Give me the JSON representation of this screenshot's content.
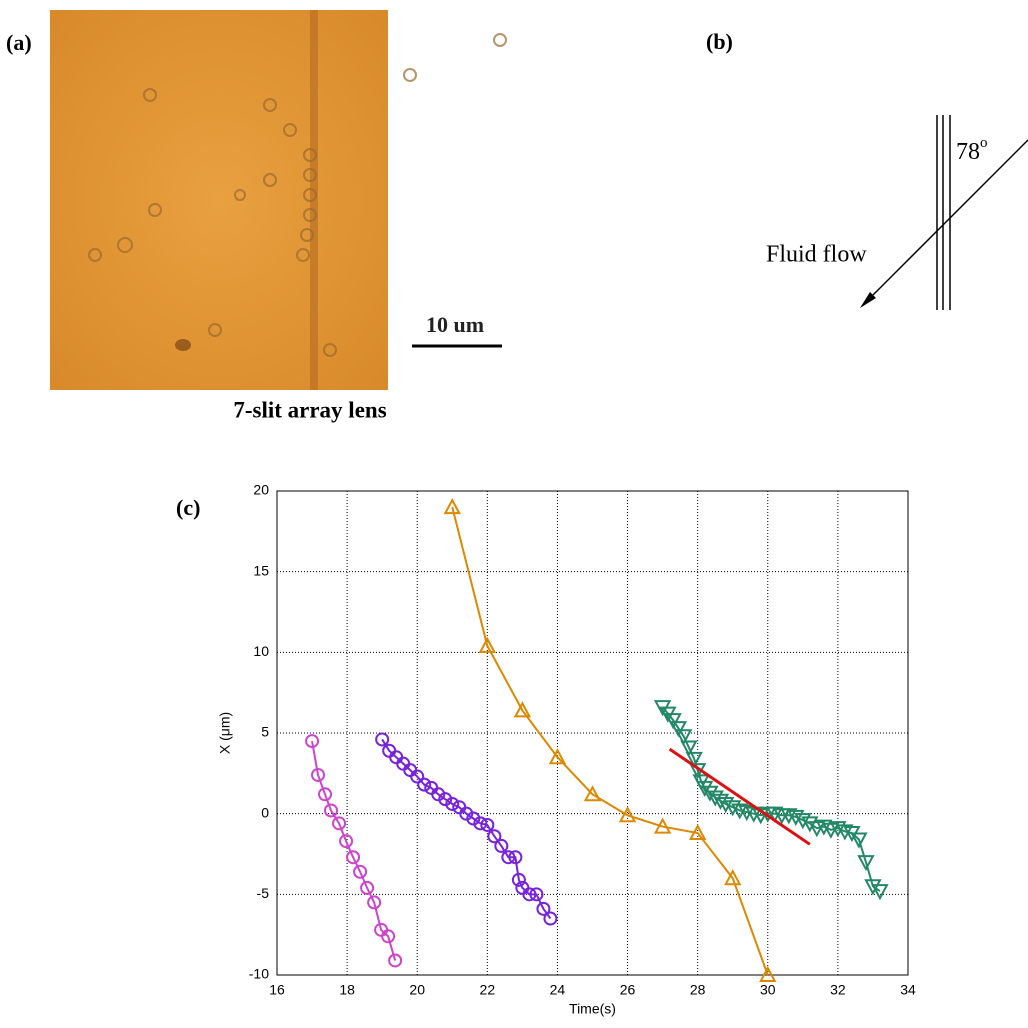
{
  "panel_labels": [
    "(a)",
    "(b)",
    "(c)"
  ],
  "image": {
    "scale_bar": "10 um",
    "caption": "7-slit array lens"
  },
  "diagram": {
    "angle": "78",
    "angle_unit": "o",
    "flow_label": "Fluid flow"
  },
  "chart_data": {
    "type": "line",
    "xlabel": "Time(s)",
    "ylabel": "X (μm)",
    "xlim": [
      16,
      34
    ],
    "xticks": [
      16,
      18,
      20,
      22,
      24,
      26,
      28,
      30,
      32,
      34
    ],
    "ylim": [
      -10,
      20
    ],
    "yticks": [
      -10,
      -5,
      0,
      5,
      10,
      15,
      20
    ],
    "grid": true,
    "series": [
      {
        "color": "#cc44cc",
        "marker": "circle",
        "x": [
          17.0,
          17.17,
          17.37,
          17.54,
          17.77,
          17.97,
          18.17,
          18.37,
          18.57,
          18.77,
          18.97,
          19.17,
          19.37
        ],
        "values": [
          4.5,
          2.4,
          1.2,
          0.2,
          -0.6,
          -1.7,
          -2.7,
          -3.6,
          -4.6,
          -5.5,
          -7.2,
          -7.6,
          -9.1
        ]
      },
      {
        "color": "#7722dd",
        "marker": "circle",
        "x": [
          19.0,
          19.2,
          19.4,
          19.6,
          19.8,
          20.0,
          20.2,
          20.4,
          20.6,
          20.8,
          21.0,
          21.2,
          21.4,
          21.6,
          21.8,
          22.0,
          22.2,
          22.4,
          22.6,
          22.8,
          22.9,
          23.0,
          23.2,
          23.4,
          23.6,
          23.8
        ],
        "values": [
          4.6,
          3.9,
          3.5,
          3.1,
          2.7,
          2.3,
          1.8,
          1.6,
          1.2,
          0.9,
          0.6,
          0.4,
          0.0,
          -0.3,
          -0.6,
          -0.7,
          -1.4,
          -2.0,
          -2.7,
          -2.7,
          -4.1,
          -4.6,
          -5.0,
          -5.0,
          -5.9,
          -6.5
        ]
      },
      {
        "color": "#dd8800",
        "marker": "triangle-up",
        "x": [
          21,
          22,
          23,
          24,
          25,
          26,
          27,
          28,
          29,
          30
        ],
        "values": [
          19.0,
          10.4,
          6.4,
          3.5,
          1.2,
          -0.1,
          -0.8,
          -1.2,
          -4.0,
          -10.0
        ]
      },
      {
        "color": "#228866",
        "marker": "triangle-down",
        "x": [
          27.0,
          27.15,
          27.3,
          27.45,
          27.6,
          27.75,
          27.9,
          28.0,
          28.1,
          28.2,
          28.35,
          28.5,
          28.65,
          28.8,
          29.0,
          29.2,
          29.4,
          29.6,
          29.8,
          30.0,
          30.2,
          30.4,
          30.6,
          30.8,
          31.0,
          31.2,
          31.4,
          31.6,
          31.8,
          32.0,
          32.2,
          32.4,
          32.6,
          32.8,
          33.0,
          33.2
        ],
        "values": [
          6.6,
          6.2,
          5.8,
          5.3,
          4.8,
          4.1,
          3.4,
          2.7,
          2.0,
          1.6,
          1.3,
          1.0,
          0.8,
          0.6,
          0.4,
          0.2,
          0.1,
          0.0,
          -0.1,
          0.0,
          0.0,
          -0.1,
          -0.1,
          -0.2,
          -0.4,
          -0.6,
          -0.9,
          -0.8,
          -1.0,
          -0.9,
          -1.1,
          -1.2,
          -1.6,
          -3.0,
          -4.5,
          -4.8
        ]
      },
      {
        "color": "#dd1111",
        "marker": "none",
        "x": [
          27.2,
          31.2
        ],
        "values": [
          4.0,
          -1.9
        ]
      }
    ]
  }
}
